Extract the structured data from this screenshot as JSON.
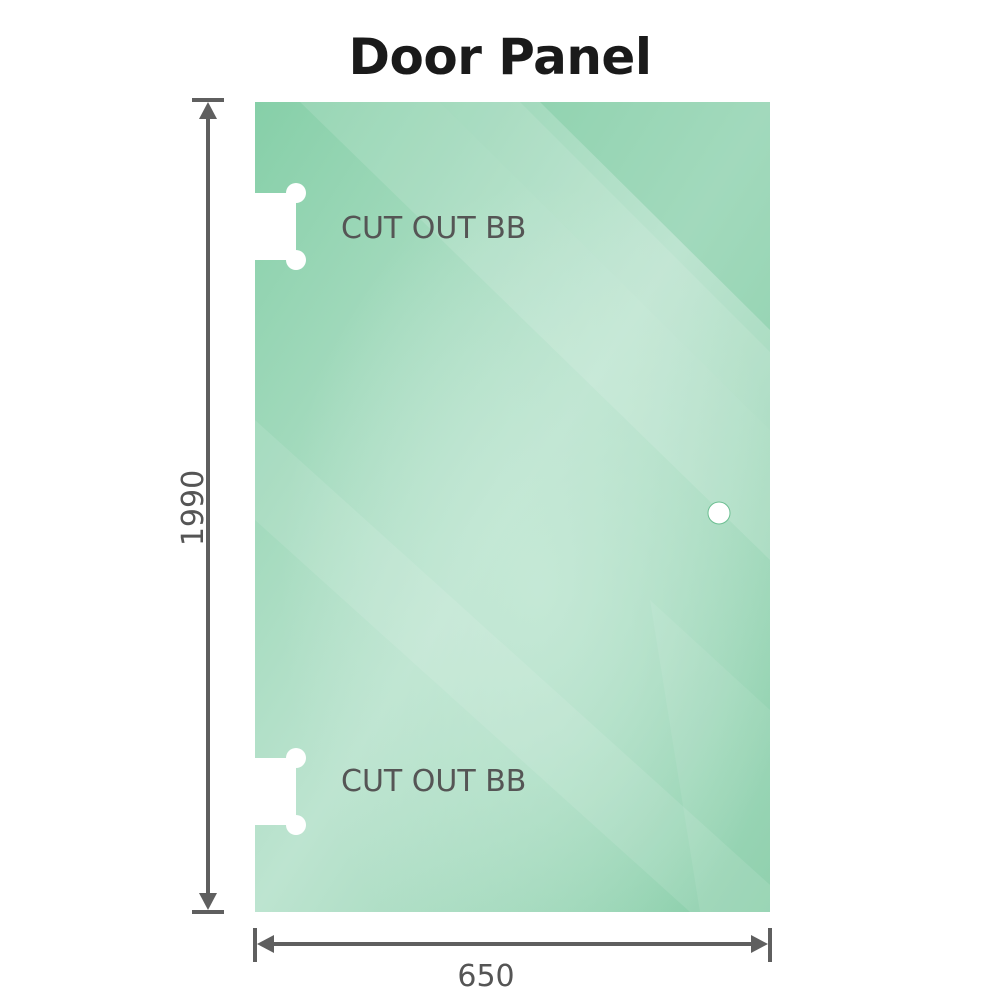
{
  "title": "Door Panel",
  "dimensions": {
    "height": "1990",
    "width": "650"
  },
  "cutouts": [
    {
      "label": "CUT OUT BB"
    },
    {
      "label": "CUT OUT BB"
    }
  ],
  "colors": {
    "glass": "#84cca6",
    "glass_light": "#bfe5d2",
    "dimension_line": "#5f5f5f"
  }
}
